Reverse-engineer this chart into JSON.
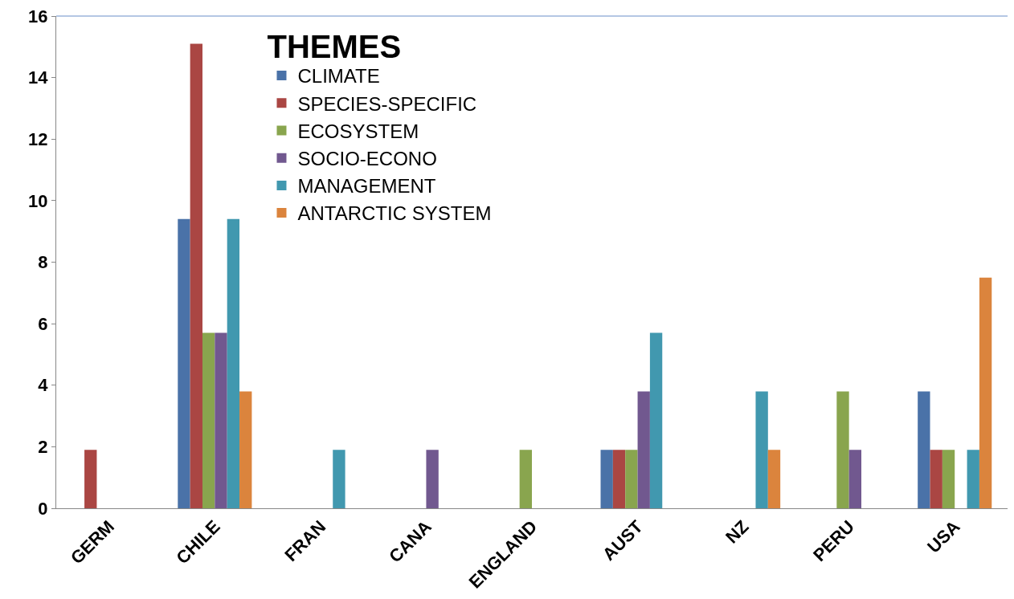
{
  "chart_data": {
    "type": "bar",
    "legend_title": "THEMES",
    "categories": [
      "GERM",
      "CHILE",
      "FRAN",
      "CANA",
      "ENGLAND",
      "AUST",
      "NZ",
      "PERU",
      "USA"
    ],
    "series": [
      {
        "name": "CLIMATE",
        "color": "#4a72a8",
        "values": [
          0,
          9.4,
          0,
          0,
          0,
          1.9,
          0,
          0,
          3.8
        ]
      },
      {
        "name": "SPECIES-SPECIFIC",
        "color": "#aa4643",
        "values": [
          1.9,
          15.1,
          0,
          0,
          0,
          1.9,
          0,
          0,
          1.9
        ]
      },
      {
        "name": "ECOSYSTEM",
        "color": "#89a54e",
        "values": [
          0,
          5.7,
          0,
          0,
          1.9,
          1.9,
          0,
          3.8,
          1.9
        ]
      },
      {
        "name": "SOCIO-ECONO",
        "color": "#71588f",
        "values": [
          0,
          5.7,
          0,
          1.9,
          0,
          3.8,
          0,
          1.9,
          0
        ]
      },
      {
        "name": "MANAGEMENT",
        "color": "#4198af",
        "values": [
          0,
          9.4,
          1.9,
          0,
          0,
          5.7,
          3.8,
          0,
          1.9
        ]
      },
      {
        "name": "ANTARCTIC SYSTEM",
        "color": "#db843d",
        "values": [
          0,
          3.8,
          0,
          0,
          0,
          0,
          1.9,
          0,
          7.5
        ]
      }
    ],
    "ylim": [
      0,
      16
    ],
    "yticks": [
      0,
      2,
      4,
      6,
      8,
      10,
      12,
      14,
      16
    ],
    "grid": false,
    "legend": "top left"
  }
}
